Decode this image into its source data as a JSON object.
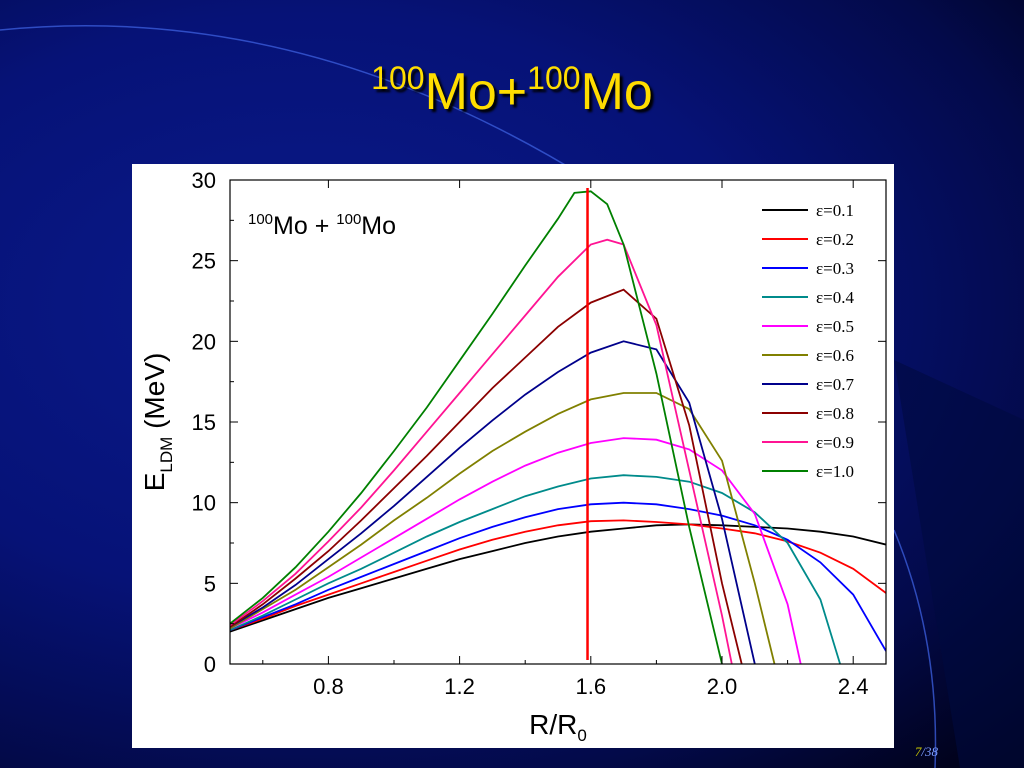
{
  "slide": {
    "title_sup1": "100",
    "title_part1": "Mo+",
    "title_sup2": "100",
    "title_part2": "Mo",
    "page_current": "7",
    "page_total": "/38"
  },
  "colors": {
    "title": "#ffdd00",
    "background": "#061277",
    "marker_line": "#ff0000"
  },
  "chart_data": {
    "type": "line",
    "annotation": {
      "sup1": "100",
      "text1": "Mo + ",
      "sup2": "100",
      "text2": "Mo"
    },
    "xlabel": "R/R",
    "xlabel_sub": "0",
    "ylabel_main": "E",
    "ylabel_sub": "LDM",
    "ylabel_unit": " (MeV)",
    "xlim": [
      0.5,
      2.5
    ],
    "ylim": [
      0,
      30
    ],
    "xticks": [
      0.8,
      1.2,
      1.6,
      2.0,
      2.4
    ],
    "xtick_labels": [
      "0.8",
      "1.2",
      "1.6",
      "2.0",
      "2.4"
    ],
    "yticks": [
      0,
      5,
      10,
      15,
      20,
      25,
      30
    ],
    "ytick_labels": [
      "0",
      "5",
      "10",
      "15",
      "20",
      "25",
      "30"
    ],
    "vline_x": 1.59,
    "legend_position": "top-right",
    "series": [
      {
        "name": "ε=0.1",
        "color": "#000000",
        "x": [
          0.5,
          0.6,
          0.7,
          0.8,
          0.9,
          1.0,
          1.1,
          1.2,
          1.3,
          1.4,
          1.5,
          1.6,
          1.7,
          1.8,
          1.9,
          2.0,
          2.1,
          2.2,
          2.3,
          2.4,
          2.5
        ],
        "y": [
          2.0,
          2.7,
          3.4,
          4.1,
          4.7,
          5.3,
          5.9,
          6.5,
          7.0,
          7.5,
          7.9,
          8.2,
          8.4,
          8.6,
          8.65,
          8.6,
          8.5,
          8.4,
          8.2,
          7.9,
          7.4
        ]
      },
      {
        "name": "ε=0.2",
        "color": "#ff0000",
        "x": [
          0.5,
          0.6,
          0.7,
          0.8,
          0.9,
          1.0,
          1.1,
          1.2,
          1.3,
          1.4,
          1.5,
          1.6,
          1.7,
          1.8,
          1.9,
          2.0,
          2.1,
          2.2,
          2.3,
          2.4,
          2.5
        ],
        "y": [
          2.1,
          2.8,
          3.6,
          4.3,
          5.0,
          5.7,
          6.4,
          7.1,
          7.7,
          8.2,
          8.6,
          8.85,
          8.9,
          8.8,
          8.65,
          8.4,
          8.1,
          7.6,
          6.9,
          5.9,
          4.4
        ]
      },
      {
        "name": "ε=0.3",
        "color": "#0000ff",
        "x": [
          0.5,
          0.6,
          0.7,
          0.8,
          0.9,
          1.0,
          1.1,
          1.2,
          1.3,
          1.4,
          1.5,
          1.6,
          1.7,
          1.8,
          1.9,
          2.0,
          2.1,
          2.2,
          2.3,
          2.4,
          2.5
        ],
        "y": [
          2.1,
          2.9,
          3.7,
          4.6,
          5.4,
          6.2,
          7.0,
          7.8,
          8.5,
          9.1,
          9.6,
          9.9,
          10.0,
          9.9,
          9.6,
          9.2,
          8.6,
          7.7,
          6.3,
          4.3,
          0.8
        ]
      },
      {
        "name": "ε=0.4",
        "color": "#008b8b",
        "x": [
          0.5,
          0.6,
          0.7,
          0.8,
          0.9,
          1.0,
          1.1,
          1.2,
          1.3,
          1.4,
          1.5,
          1.6,
          1.7,
          1.8,
          1.9,
          2.0,
          2.1,
          2.2,
          2.3,
          2.36
        ],
        "y": [
          2.1,
          3.0,
          4.0,
          5.0,
          5.9,
          6.9,
          7.9,
          8.8,
          9.6,
          10.4,
          11.0,
          11.5,
          11.7,
          11.6,
          11.3,
          10.6,
          9.4,
          7.5,
          4.0,
          0
        ]
      },
      {
        "name": "ε=0.5",
        "color": "#ff00ff",
        "x": [
          0.5,
          0.6,
          0.7,
          0.8,
          0.9,
          1.0,
          1.1,
          1.2,
          1.3,
          1.4,
          1.5,
          1.6,
          1.7,
          1.8,
          1.9,
          2.0,
          2.1,
          2.2,
          2.24
        ],
        "y": [
          2.2,
          3.2,
          4.3,
          5.4,
          6.6,
          7.8,
          9.0,
          10.2,
          11.3,
          12.3,
          13.1,
          13.7,
          14.0,
          13.9,
          13.3,
          12.0,
          9.3,
          3.7,
          0
        ]
      },
      {
        "name": "ε=0.6",
        "color": "#808000",
        "x": [
          0.5,
          0.6,
          0.7,
          0.8,
          0.9,
          1.0,
          1.1,
          1.2,
          1.3,
          1.4,
          1.5,
          1.6,
          1.7,
          1.8,
          1.9,
          2.0,
          2.1,
          2.16
        ],
        "y": [
          2.2,
          3.4,
          4.6,
          6.0,
          7.4,
          8.9,
          10.3,
          11.8,
          13.2,
          14.4,
          15.5,
          16.4,
          16.8,
          16.8,
          15.8,
          12.6,
          5.0,
          0
        ]
      },
      {
        "name": "ε=0.7",
        "color": "#00008b",
        "x": [
          0.5,
          0.6,
          0.7,
          0.8,
          0.9,
          1.0,
          1.1,
          1.2,
          1.3,
          1.4,
          1.5,
          1.6,
          1.7,
          1.8,
          1.9,
          2.0,
          2.1
        ],
        "y": [
          2.3,
          3.5,
          4.9,
          6.5,
          8.1,
          9.8,
          11.6,
          13.4,
          15.1,
          16.7,
          18.1,
          19.3,
          20.0,
          19.5,
          16.2,
          9.0,
          0
        ]
      },
      {
        "name": "ε=0.8",
        "color": "#8b0000",
        "x": [
          0.5,
          0.6,
          0.7,
          0.8,
          0.9,
          1.0,
          1.1,
          1.2,
          1.3,
          1.4,
          1.5,
          1.6,
          1.7,
          1.8,
          1.9,
          2.0,
          2.06
        ],
        "y": [
          2.3,
          3.7,
          5.3,
          7.0,
          8.9,
          10.9,
          12.9,
          15.0,
          17.1,
          19.0,
          20.9,
          22.4,
          23.2,
          21.4,
          14.8,
          5.0,
          0
        ]
      },
      {
        "name": "ε=0.9",
        "color": "#ff1493",
        "x": [
          0.5,
          0.6,
          0.7,
          0.8,
          0.9,
          1.0,
          1.1,
          1.2,
          1.3,
          1.4,
          1.5,
          1.6,
          1.65,
          1.7,
          1.8,
          1.9,
          2.0,
          2.03
        ],
        "y": [
          2.4,
          3.9,
          5.6,
          7.6,
          9.7,
          12.0,
          14.4,
          16.8,
          19.2,
          21.6,
          24.0,
          26.0,
          26.3,
          26.0,
          21.0,
          12.0,
          3.0,
          0
        ]
      },
      {
        "name": "ε=1.0",
        "color": "#008000",
        "x": [
          0.5,
          0.6,
          0.7,
          0.8,
          0.9,
          1.0,
          1.1,
          1.2,
          1.3,
          1.4,
          1.5,
          1.55,
          1.6,
          1.65,
          1.7,
          1.8,
          1.9,
          2.0
        ],
        "y": [
          2.5,
          4.1,
          6.0,
          8.2,
          10.6,
          13.2,
          15.9,
          18.8,
          21.7,
          24.7,
          27.6,
          29.2,
          29.3,
          28.5,
          26.0,
          18.0,
          8.5,
          0
        ]
      }
    ]
  }
}
